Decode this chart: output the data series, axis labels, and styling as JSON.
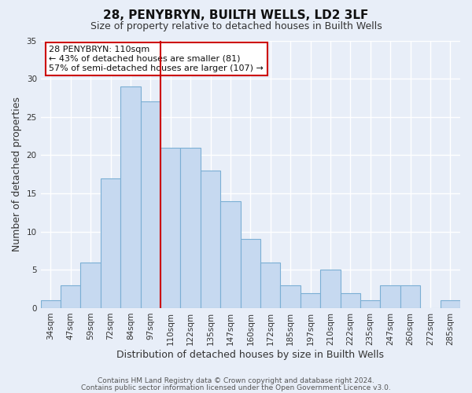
{
  "title": "28, PENYBRYN, BUILTH WELLS, LD2 3LF",
  "subtitle": "Size of property relative to detached houses in Builth Wells",
  "xlabel": "Distribution of detached houses by size in Builth Wells",
  "ylabel": "Number of detached properties",
  "bar_labels": [
    "34sqm",
    "47sqm",
    "59sqm",
    "72sqm",
    "84sqm",
    "97sqm",
    "110sqm",
    "122sqm",
    "135sqm",
    "147sqm",
    "160sqm",
    "172sqm",
    "185sqm",
    "197sqm",
    "210sqm",
    "222sqm",
    "235sqm",
    "247sqm",
    "260sqm",
    "272sqm",
    "285sqm"
  ],
  "bar_values": [
    1,
    3,
    6,
    17,
    29,
    27,
    21,
    21,
    18,
    14,
    9,
    6,
    3,
    2,
    5,
    2,
    1,
    3,
    3,
    0,
    1
  ],
  "bar_color": "#c6d9f0",
  "bar_edge_color": "#7bafd4",
  "vline_x_index": 6,
  "vline_color": "#cc0000",
  "ylim": [
    0,
    35
  ],
  "yticks": [
    0,
    5,
    10,
    15,
    20,
    25,
    30,
    35
  ],
  "annotation_title": "28 PENYBRYN: 110sqm",
  "annotation_line1": "← 43% of detached houses are smaller (81)",
  "annotation_line2": "57% of semi-detached houses are larger (107) →",
  "annotation_box_color": "#ffffff",
  "annotation_box_edge": "#cc0000",
  "footer1": "Contains HM Land Registry data © Crown copyright and database right 2024.",
  "footer2": "Contains public sector information licensed under the Open Government Licence v3.0.",
  "background_color": "#e8eef8",
  "plot_bg_color": "#e8eef8",
  "grid_color": "#ffffff",
  "title_fontsize": 11,
  "subtitle_fontsize": 9,
  "axis_label_fontsize": 9,
  "tick_fontsize": 7.5,
  "footer_fontsize": 6.5,
  "annotation_fontsize": 8
}
